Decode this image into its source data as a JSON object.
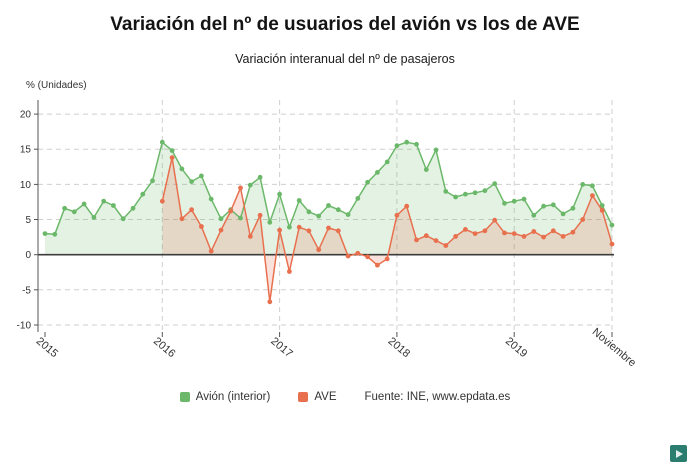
{
  "title": "Variación del nº de usuarios del avión vs los de AVE",
  "subtitle": "Variación interanual del nº de pasajeros",
  "y_axis_label": "% (Unidades)",
  "source_label": "Fuente: INE, www.epdata.es",
  "colors": {
    "avion": "#6cb86a",
    "ave": "#e8704e",
    "grid": "#cfcfcf",
    "zero_line": "#3c3c3c",
    "axis": "#555555",
    "tick_text": "#333333",
    "logo_bg": "#2a7d6f"
  },
  "chart_data": {
    "type": "line",
    "title": "Variación del nº de usuarios del avión vs los de AVE",
    "subtitle": "Variación interanual del nº de pasajeros",
    "ylabel": "% (Unidades)",
    "ylim": [
      -11,
      22
    ],
    "y_ticks": [
      20,
      15,
      10,
      5,
      0,
      -5,
      -10
    ],
    "x_ticks": [
      {
        "i": 0,
        "label": "2015",
        "grid": false
      },
      {
        "i": 12,
        "label": "2016",
        "grid": true
      },
      {
        "i": 24,
        "label": "2017",
        "grid": true
      },
      {
        "i": 36,
        "label": "2018",
        "grid": true
      },
      {
        "i": 48,
        "label": "2019",
        "grid": true
      },
      {
        "i": 58,
        "label": "Noviembre",
        "grid": true
      }
    ],
    "x_unit": "months Jan 2015 - Nov 2019",
    "legend_position": "bottom",
    "grid": true,
    "series": [
      {
        "name": "Avión (interior)",
        "color": "#6cb86a",
        "fill_opacity": 0.18,
        "values": [
          3.0,
          2.9,
          6.6,
          6.1,
          7.2,
          5.3,
          7.6,
          7.0,
          5.1,
          6.6,
          8.6,
          10.5,
          16.0,
          14.8,
          12.2,
          10.4,
          11.2,
          7.9,
          5.1,
          6.4,
          5.2,
          9.9,
          11.0,
          4.6,
          8.6,
          3.9,
          7.7,
          6.1,
          5.5,
          7.0,
          6.4,
          5.7,
          8.0,
          10.3,
          11.7,
          13.2,
          15.5,
          16.0,
          15.7,
          12.1,
          14.9,
          9.0,
          8.2,
          8.6,
          8.8,
          9.1,
          10.1,
          7.3,
          7.6,
          7.9,
          5.6,
          6.9,
          7.1,
          5.8,
          6.6,
          10.0,
          9.8,
          7.0,
          4.2
        ]
      },
      {
        "name": "AVE",
        "color": "#e8704e",
        "fill_opacity": 0.2,
        "values": [
          null,
          null,
          null,
          null,
          null,
          null,
          null,
          null,
          null,
          null,
          null,
          null,
          7.6,
          13.8,
          5.1,
          6.4,
          4.0,
          0.5,
          3.5,
          6.2,
          9.5,
          2.6,
          5.6,
          -6.7,
          3.5,
          -2.4,
          3.9,
          3.4,
          0.7,
          3.8,
          3.4,
          -0.2,
          0.2,
          -0.3,
          -1.5,
          -0.6,
          5.6,
          6.9,
          2.1,
          2.7,
          2.0,
          1.3,
          2.6,
          3.6,
          3.0,
          3.4,
          4.9,
          3.1,
          3.0,
          2.6,
          3.3,
          2.5,
          3.4,
          2.6,
          3.2,
          5.0,
          8.4,
          6.3,
          1.5
        ]
      }
    ]
  }
}
